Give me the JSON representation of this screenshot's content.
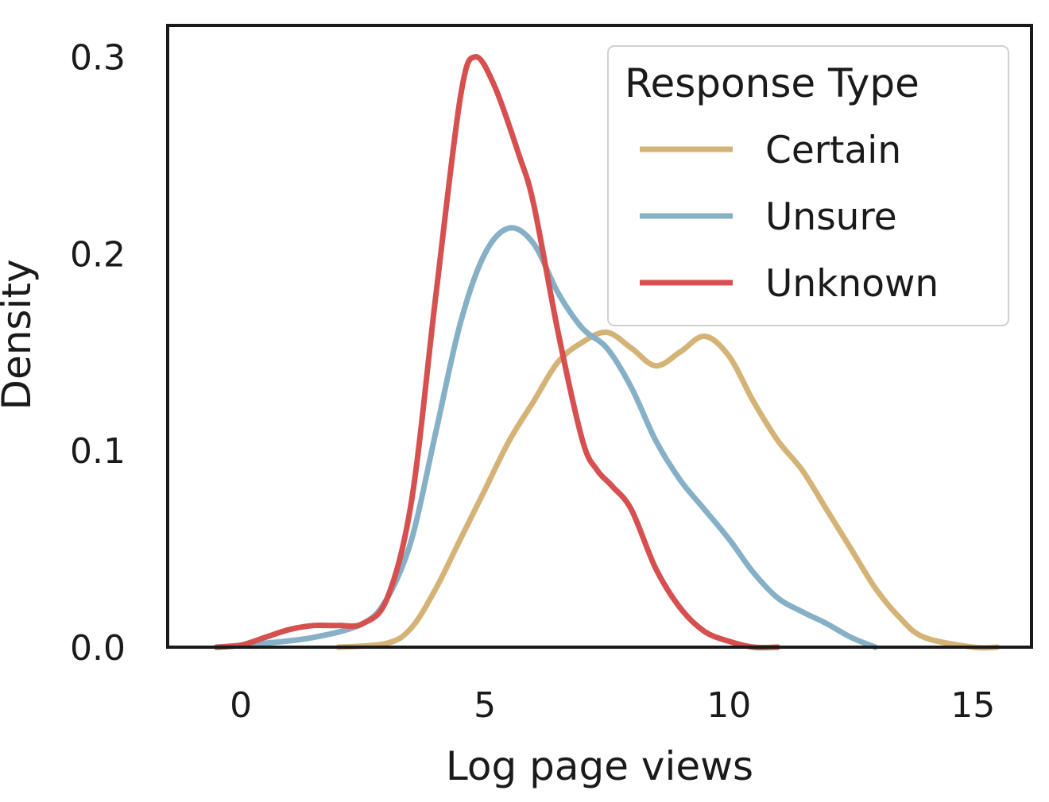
{
  "chart_data": {
    "type": "line",
    "xlabel": "Log page views",
    "ylabel": "Density",
    "xlim": [
      -1.5,
      16.2
    ],
    "ylim": [
      0,
      0.316
    ],
    "xticks": [
      0,
      5,
      10,
      15
    ],
    "yticks": [
      0.0,
      0.1,
      0.2,
      0.3
    ],
    "xtick_labels": [
      "0",
      "5",
      "10",
      "15"
    ],
    "ytick_labels": [
      "0.0",
      "0.1",
      "0.2",
      "0.3"
    ],
    "grid": false,
    "legend": {
      "title": "Response Type",
      "placement": "top-right"
    },
    "series": [
      {
        "name": "Certain",
        "color": "#d4b476",
        "x": [
          2.0,
          3.0,
          3.5,
          4.0,
          4.5,
          5.0,
          5.5,
          6.0,
          6.5,
          7.0,
          7.5,
          8.0,
          8.5,
          9.0,
          9.5,
          10.0,
          10.5,
          11.0,
          11.5,
          12.0,
          12.5,
          13.0,
          13.5,
          14.0,
          15.0,
          15.5
        ],
        "y": [
          0.0,
          0.002,
          0.01,
          0.03,
          0.055,
          0.08,
          0.105,
          0.125,
          0.145,
          0.155,
          0.16,
          0.152,
          0.143,
          0.15,
          0.158,
          0.148,
          0.125,
          0.105,
          0.09,
          0.07,
          0.05,
          0.03,
          0.015,
          0.005,
          0.0,
          0.0
        ]
      },
      {
        "name": "Unsure",
        "color": "#86b0c6",
        "x": [
          -0.5,
          0.5,
          1.5,
          2.5,
          3.0,
          3.5,
          4.0,
          4.5,
          5.0,
          5.5,
          6.0,
          6.5,
          7.0,
          7.5,
          8.0,
          8.5,
          9.0,
          9.5,
          10.0,
          10.5,
          11.0,
          11.5,
          12.0,
          12.5,
          13.0
        ],
        "y": [
          0.0,
          0.002,
          0.005,
          0.012,
          0.025,
          0.055,
          0.11,
          0.165,
          0.2,
          0.213,
          0.205,
          0.18,
          0.162,
          0.152,
          0.132,
          0.105,
          0.085,
          0.07,
          0.055,
          0.038,
          0.025,
          0.018,
          0.012,
          0.005,
          0.0
        ]
      },
      {
        "name": "Unknown",
        "color": "#d65050",
        "x": [
          -0.5,
          0.0,
          0.5,
          1.0,
          1.5,
          2.0,
          2.5,
          3.0,
          3.5,
          4.0,
          4.5,
          4.8,
          5.2,
          5.7,
          6.0,
          6.5,
          7.0,
          7.3,
          7.6,
          8.0,
          8.5,
          9.0,
          9.5,
          10.0,
          10.5,
          11.0
        ],
        "y": [
          0.0,
          0.001,
          0.005,
          0.009,
          0.011,
          0.011,
          0.012,
          0.025,
          0.075,
          0.18,
          0.28,
          0.3,
          0.285,
          0.25,
          0.225,
          0.16,
          0.105,
          0.09,
          0.082,
          0.07,
          0.04,
          0.02,
          0.008,
          0.003,
          0.0,
          0.0
        ]
      }
    ]
  }
}
